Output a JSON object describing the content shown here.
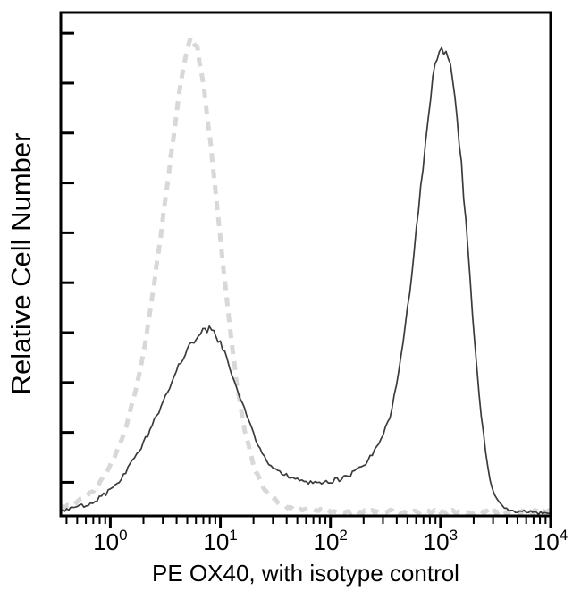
{
  "chart_data": {
    "type": "line",
    "subtype": "flow-cytometry-histogram",
    "title": "",
    "xlabel": "PE OX40, with isotype control",
    "ylabel": "Relative Cell Number",
    "x_scale": "log10",
    "x_range_log10": [
      -0.45,
      4.0
    ],
    "ylim": [
      0,
      1
    ],
    "grid": false,
    "legend": "none",
    "axis_color": "#000000",
    "y_tick_count": 10,
    "x_ticks": {
      "base": "10",
      "exponents": [
        0,
        1,
        2,
        3,
        4
      ],
      "labels": [
        "10^0",
        "10^1",
        "10^2",
        "10^3",
        "10^4"
      ]
    },
    "series": [
      {
        "name": "Isotype control",
        "style": "dashed",
        "color": "#d8d8d8",
        "stroke_width": 5,
        "points_log10x_y": [
          [
            -0.45,
            0.012
          ],
          [
            -0.35,
            0.02
          ],
          [
            -0.25,
            0.032
          ],
          [
            -0.15,
            0.05
          ],
          [
            -0.05,
            0.08
          ],
          [
            0.05,
            0.12
          ],
          [
            0.15,
            0.18
          ],
          [
            0.25,
            0.27
          ],
          [
            0.32,
            0.35
          ],
          [
            0.4,
            0.47
          ],
          [
            0.48,
            0.6
          ],
          [
            0.55,
            0.72
          ],
          [
            0.62,
            0.84
          ],
          [
            0.68,
            0.92
          ],
          [
            0.73,
            0.96
          ],
          [
            0.79,
            0.94
          ],
          [
            0.85,
            0.86
          ],
          [
            0.91,
            0.75
          ],
          [
            0.97,
            0.62
          ],
          [
            1.03,
            0.49
          ],
          [
            1.09,
            0.37
          ],
          [
            1.15,
            0.26
          ],
          [
            1.22,
            0.17
          ],
          [
            1.3,
            0.1
          ],
          [
            1.38,
            0.06
          ],
          [
            1.46,
            0.035
          ],
          [
            1.55,
            0.02
          ],
          [
            1.65,
            0.013
          ],
          [
            1.8,
            0.009
          ],
          [
            2.0,
            0.007
          ],
          [
            2.4,
            0.006
          ],
          [
            2.8,
            0.006
          ],
          [
            3.2,
            0.006
          ],
          [
            3.6,
            0.005
          ],
          [
            4.0,
            0.005
          ]
        ]
      },
      {
        "name": "PE OX40",
        "style": "solid",
        "color": "#3b3b3b",
        "stroke_width": 1.7,
        "points_log10x_y": [
          [
            -0.45,
            0.008
          ],
          [
            -0.36,
            0.012
          ],
          [
            -0.28,
            0.016
          ],
          [
            -0.2,
            0.022
          ],
          [
            -0.12,
            0.03
          ],
          [
            -0.04,
            0.042
          ],
          [
            0.04,
            0.058
          ],
          [
            0.12,
            0.08
          ],
          [
            0.2,
            0.105
          ],
          [
            0.28,
            0.135
          ],
          [
            0.36,
            0.17
          ],
          [
            0.44,
            0.21
          ],
          [
            0.52,
            0.25
          ],
          [
            0.6,
            0.29
          ],
          [
            0.68,
            0.325
          ],
          [
            0.76,
            0.352
          ],
          [
            0.84,
            0.37
          ],
          [
            0.9,
            0.375
          ],
          [
            0.96,
            0.362
          ],
          [
            1.02,
            0.335
          ],
          [
            1.08,
            0.3
          ],
          [
            1.14,
            0.262
          ],
          [
            1.2,
            0.222
          ],
          [
            1.26,
            0.185
          ],
          [
            1.32,
            0.152
          ],
          [
            1.38,
            0.125
          ],
          [
            1.44,
            0.105
          ],
          [
            1.5,
            0.092
          ],
          [
            1.58,
            0.08
          ],
          [
            1.66,
            0.072
          ],
          [
            1.74,
            0.067
          ],
          [
            1.82,
            0.064
          ],
          [
            1.9,
            0.064
          ],
          [
            1.98,
            0.066
          ],
          [
            2.06,
            0.07
          ],
          [
            2.14,
            0.076
          ],
          [
            2.22,
            0.086
          ],
          [
            2.3,
            0.1
          ],
          [
            2.38,
            0.12
          ],
          [
            2.46,
            0.152
          ],
          [
            2.54,
            0.2
          ],
          [
            2.6,
            0.26
          ],
          [
            2.66,
            0.34
          ],
          [
            2.72,
            0.45
          ],
          [
            2.78,
            0.57
          ],
          [
            2.84,
            0.7
          ],
          [
            2.89,
            0.8
          ],
          [
            2.93,
            0.875
          ],
          [
            2.97,
            0.925
          ],
          [
            3.01,
            0.945
          ],
          [
            3.05,
            0.932
          ],
          [
            3.09,
            0.898
          ],
          [
            3.13,
            0.84
          ],
          [
            3.17,
            0.755
          ],
          [
            3.21,
            0.645
          ],
          [
            3.25,
            0.525
          ],
          [
            3.29,
            0.405
          ],
          [
            3.33,
            0.295
          ],
          [
            3.37,
            0.2
          ],
          [
            3.41,
            0.125
          ],
          [
            3.45,
            0.072
          ],
          [
            3.49,
            0.04
          ],
          [
            3.53,
            0.022
          ],
          [
            3.58,
            0.012
          ],
          [
            3.66,
            0.007
          ],
          [
            3.8,
            0.004
          ],
          [
            4.0,
            0.003
          ]
        ]
      }
    ]
  }
}
